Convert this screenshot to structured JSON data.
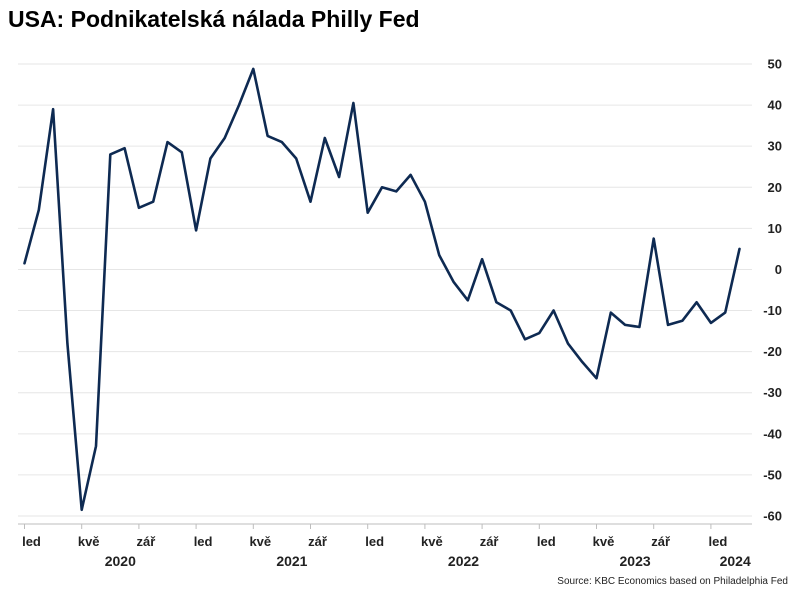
{
  "title": "USA: Podnikatelská nálada Philly Fed",
  "source": "Source: KBC Economics based on Philadelphia Fed",
  "chart_data": {
    "type": "line",
    "title": "USA: Podnikatelská nálada Philly Fed",
    "line_color": "#0e2a52",
    "grid": true,
    "ylim": [
      -60,
      50
    ],
    "yticks": [
      50,
      40,
      30,
      20,
      10,
      0,
      -10,
      -20,
      -30,
      -40,
      -50,
      -60
    ],
    "x_tick_labels": [
      {
        "label": "led",
        "index": 0
      },
      {
        "label": "kvě",
        "index": 4
      },
      {
        "label": "zář",
        "index": 8
      },
      {
        "label": "led",
        "index": 12
      },
      {
        "label": "kvě",
        "index": 16
      },
      {
        "label": "zář",
        "index": 20
      },
      {
        "label": "led",
        "index": 24
      },
      {
        "label": "kvě",
        "index": 28
      },
      {
        "label": "zář",
        "index": 32
      },
      {
        "label": "led",
        "index": 36
      },
      {
        "label": "kvě",
        "index": 40
      },
      {
        "label": "zář",
        "index": 44
      },
      {
        "label": "led",
        "index": 48
      }
    ],
    "year_labels": [
      {
        "label": "2020",
        "index": 6
      },
      {
        "label": "2021",
        "index": 18
      },
      {
        "label": "2022",
        "index": 30
      },
      {
        "label": "2023",
        "index": 42
      },
      {
        "label": "2024",
        "index": 49
      }
    ],
    "series": [
      {
        "values": [
          1.5,
          14.5,
          39.0,
          -18.0,
          -58.5,
          -43.0,
          28.0,
          29.5,
          15.0,
          16.5,
          31.0,
          28.5,
          9.5,
          27.0,
          32.0,
          40.0,
          48.8,
          32.5,
          31.0,
          27.0,
          16.5,
          32.0,
          22.5,
          40.5,
          13.8,
          20.0,
          19.0,
          23.0,
          16.5,
          3.5,
          -3.0,
          -7.5,
          2.5,
          -8.0,
          -10.0,
          -17.0,
          -15.5,
          -10.0,
          -18.0,
          -22.5,
          -26.5,
          -10.5,
          -13.5,
          -14.0,
          7.5,
          -13.5,
          -12.5,
          -8.0,
          -13.0,
          -10.5,
          5.0
        ]
      }
    ]
  }
}
